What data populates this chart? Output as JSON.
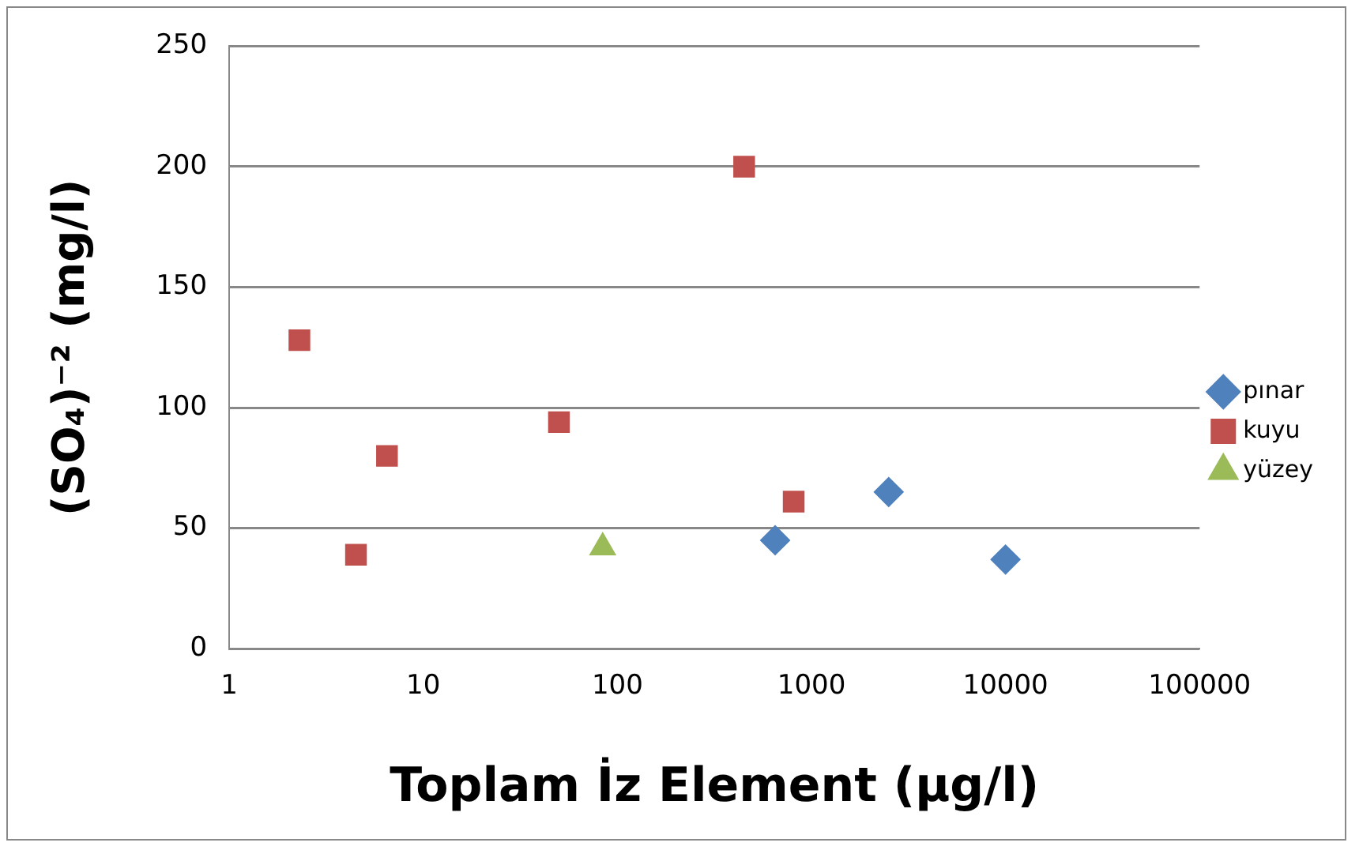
{
  "chart_data": {
    "type": "scatter",
    "xlabel": "Toplam İz Element (µg/l)",
    "ylabel": "(SO₄)⁻² (mg/l)",
    "log": "x",
    "xlim": [
      1,
      100000
    ],
    "xticks": [
      1,
      10,
      100,
      1000,
      10000,
      100000
    ],
    "ylim": [
      0,
      250
    ],
    "yticks": [
      0,
      50,
      100,
      150,
      200,
      250
    ],
    "grid": "y",
    "legend": "right",
    "series": [
      {
        "name": "pınar",
        "color": "#4f81bd",
        "marker": "diamond",
        "x": [
          650,
          2500,
          10000
        ],
        "values": [
          45,
          65,
          37
        ]
      },
      {
        "name": "kuyu",
        "color": "#c0504d",
        "marker": "square",
        "x": [
          2.3,
          4.5,
          6.5,
          50,
          450,
          810
        ],
        "values": [
          128,
          39,
          80,
          94,
          200,
          61
        ]
      },
      {
        "name": "yüzey",
        "color": "#9bbb59",
        "marker": "triangle",
        "x": [
          84
        ],
        "values": [
          42
        ]
      }
    ]
  }
}
